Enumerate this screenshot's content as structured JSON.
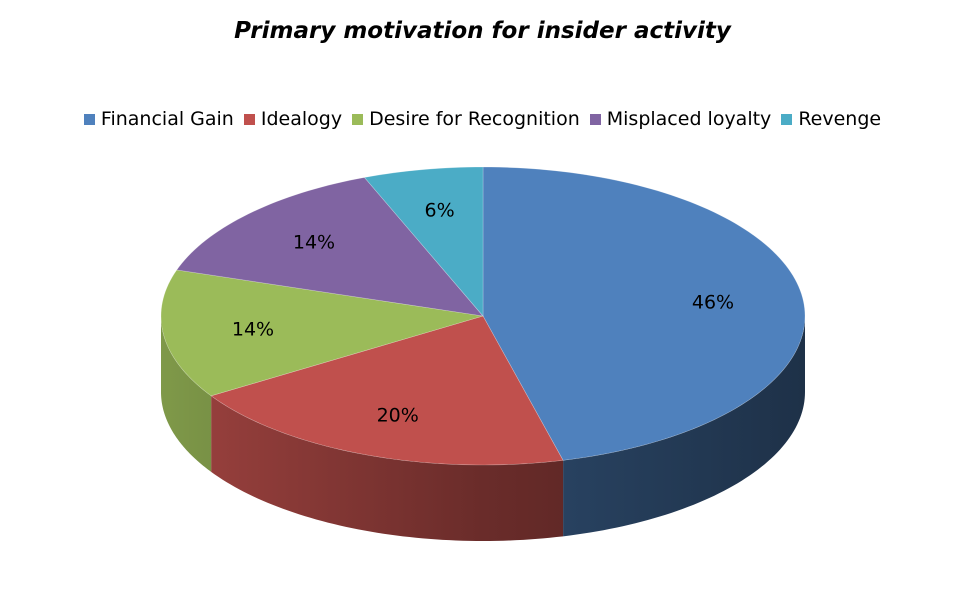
{
  "chart_data": {
    "type": "pie",
    "title": "Primary motivation for insider activity",
    "legend_position": "top",
    "categories": [
      "Financial Gain",
      "Idealogy",
      "Desire for Recognition",
      "Misplaced loyalty",
      "Revenge"
    ],
    "values": [
      46,
      20,
      14,
      14,
      6
    ],
    "labels": [
      "46%",
      "20%",
      "14%",
      "14%",
      "6%"
    ],
    "colors": [
      "#4F81BD",
      "#C0504D",
      "#9BBB59",
      "#8064A2",
      "#4BACC6"
    ],
    "style": "3d"
  }
}
